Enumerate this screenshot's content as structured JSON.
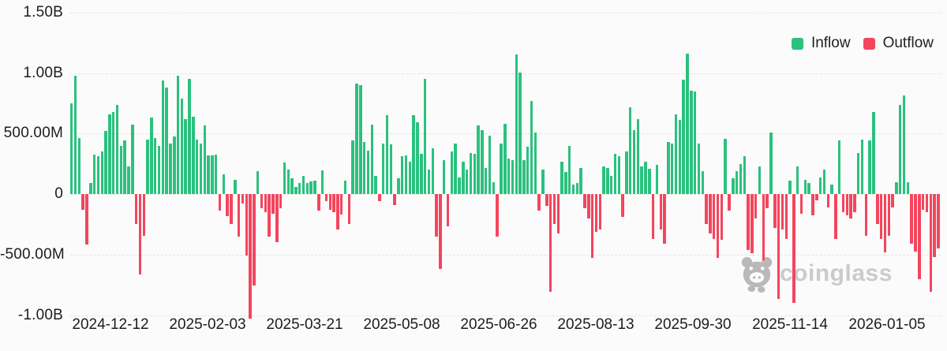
{
  "legend": {
    "inflow": "Inflow",
    "outflow": "Outflow"
  },
  "watermark": {
    "text": "coinglass"
  },
  "colors": {
    "inflow": "#2bc17e",
    "outflow": "#f4455d",
    "grid": "#e5e5e7",
    "axis_text": "#1d1d1f",
    "watermark_text": "#cbcbcb",
    "watermark_logo": "#b9b9b9",
    "background": "#fbfbfb"
  },
  "chart_data": {
    "type": "bar",
    "title": "",
    "xlabel": "",
    "ylabel": "",
    "unit": "USD",
    "value_scale": "millions",
    "grid": "horizontal-dashed",
    "legend_position": "top-right",
    "legend": [
      "Inflow",
      "Outflow"
    ],
    "y_ticks": [
      {
        "label": "1.50B",
        "value_m": 1500
      },
      {
        "label": "1.00B",
        "value_m": 1000
      },
      {
        "label": "500.00M",
        "value_m": 500
      },
      {
        "label": "0",
        "value_m": 0
      },
      {
        "label": "-500.00M",
        "value_m": -500
      },
      {
        "label": "-1.00B",
        "value_m": -1000
      }
    ],
    "ylim_m": [
      -1250,
      1600
    ],
    "x_ticks": [
      "2024-12-12",
      "2025-02-03",
      "2025-03-21",
      "2025-05-08",
      "2025-06-26",
      "2025-08-13",
      "2025-09-30",
      "2025-11-14",
      "2026-01-05"
    ],
    "series": [
      {
        "name": "Inflow/Outflow",
        "sign_convention": "positive = Inflow (green), negative = Outflow (red)",
        "values": [
          750,
          975,
          460,
          -130,
          -420,
          90,
          325,
          315,
          355,
          520,
          660,
          680,
          735,
          400,
          445,
          230,
          575,
          -245,
          -665,
          -345,
          450,
          630,
          465,
          395,
          940,
          880,
          420,
          475,
          980,
          790,
          620,
          950,
          640,
          450,
          420,
          570,
          320,
          320,
          325,
          -140,
          160,
          -185,
          -250,
          120,
          -355,
          -75,
          -510,
          -1030,
          -755,
          190,
          -120,
          -150,
          -355,
          -160,
          -400,
          -120,
          260,
          205,
          130,
          60,
          90,
          150,
          90,
          105,
          110,
          -140,
          195,
          -60,
          -130,
          -150,
          -290,
          -170,
          110,
          -250,
          440,
          910,
          900,
          430,
          360,
          575,
          150,
          -60,
          415,
          650,
          410,
          -90,
          130,
          310,
          320,
          270,
          650,
          590,
          330,
          950,
          200,
          380,
          -355,
          -620,
          280,
          -270,
          355,
          415,
          140,
          270,
          200,
          340,
          335,
          570,
          525,
          215,
          480,
          95,
          -350,
          415,
          580,
          290,
          280,
          1150,
          1005,
          280,
          390,
          770,
          510,
          -140,
          205,
          -95,
          -810,
          -250,
          -325,
          265,
          180,
          395,
          75,
          90,
          215,
          -120,
          -205,
          -525,
          -315,
          -290,
          225,
          215,
          150,
          330,
          310,
          -190,
          350,
          715,
          530,
          620,
          230,
          270,
          210,
          -370,
          240,
          -290,
          -410,
          430,
          420,
          655,
          610,
          945,
          1160,
          855,
          845,
          420,
          190,
          -250,
          -325,
          -370,
          -530,
          -380,
          455,
          -140,
          130,
          190,
          245,
          310,
          -465,
          -487,
          -205,
          225,
          -550,
          -120,
          505,
          -280,
          -865,
          -290,
          -370,
          110,
          -900,
          225,
          -160,
          120,
          90,
          -175,
          -55,
          140,
          205,
          -110,
          75,
          -370,
          445,
          -150,
          -175,
          -205,
          -150,
          340,
          450,
          -345,
          445,
          680,
          -250,
          -370,
          -485,
          -345,
          -110,
          100,
          735,
          815,
          95,
          -410,
          -475,
          -705,
          -130,
          -150,
          -810,
          -520,
          -450
        ]
      }
    ]
  }
}
